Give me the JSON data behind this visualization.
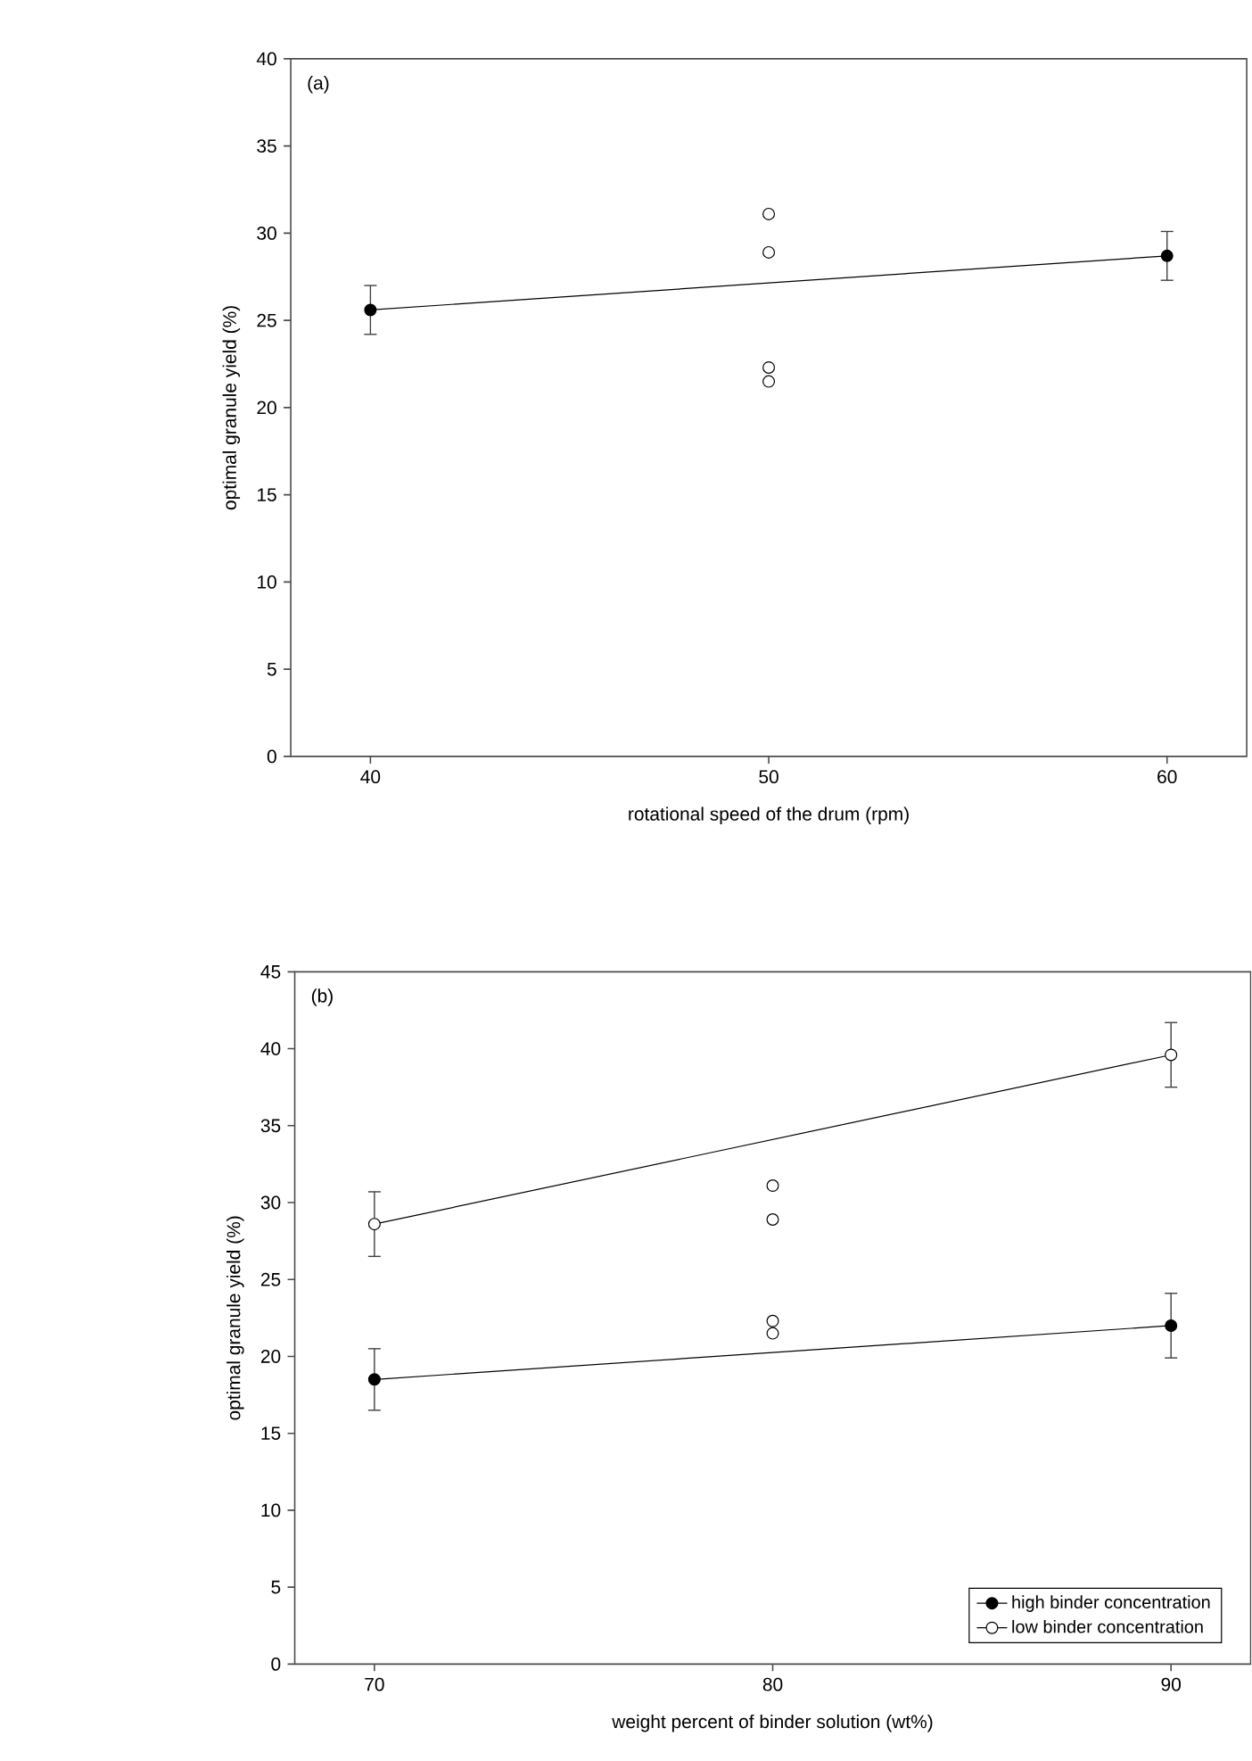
{
  "chart_data": [
    {
      "type": "line",
      "annotations": [
        "(a)"
      ],
      "xlabel": "rotational speed of the drum (rpm)",
      "ylabel": "optimal granule yield (%)",
      "xlim": [
        38,
        62
      ],
      "xticks": [
        40,
        50,
        60
      ],
      "ylim": [
        0,
        40
      ],
      "yticks": [
        0,
        5,
        10,
        15,
        20,
        25,
        30,
        35,
        40
      ],
      "marker": "circle",
      "legend": false,
      "series": [
        {
          "x": [
            40,
            60
          ],
          "values": [
            25.6,
            28.7
          ],
          "errors": [
            1.4,
            1.4
          ],
          "color": "#000000"
        },
        {
          "type": "scatter",
          "x": [
            50,
            50,
            50,
            50
          ],
          "values": [
            31.1,
            28.9,
            22.3,
            21.5
          ],
          "color": "#ffffff"
        }
      ]
    },
    {
      "type": "line",
      "annotations": [
        "(b)"
      ],
      "xlabel": "weight percent of binder solution (wt%)",
      "ylabel": "optimal granule yield (%)",
      "xlim": [
        68,
        92
      ],
      "xticks": [
        70,
        80,
        90
      ],
      "ylim": [
        0,
        45
      ],
      "yticks": [
        0,
        5,
        10,
        15,
        20,
        25,
        30,
        35,
        40,
        45
      ],
      "marker": "circle",
      "legend": "bottom right",
      "series": [
        {
          "name": "high binder concentration",
          "x": [
            70,
            90
          ],
          "values": [
            18.5,
            22.0
          ],
          "errors": [
            2.0,
            2.1
          ],
          "color": "#000000"
        },
        {
          "name": "low binder concentration",
          "x": [
            70,
            90
          ],
          "values": [
            28.6,
            39.6
          ],
          "errors": [
            2.1,
            2.1
          ],
          "color": "#ffffff"
        },
        {
          "type": "scatter",
          "x": [
            80,
            80,
            80,
            80
          ],
          "values": [
            31.1,
            28.9,
            22.3,
            21.5
          ],
          "color": "#ffffff"
        }
      ]
    }
  ]
}
